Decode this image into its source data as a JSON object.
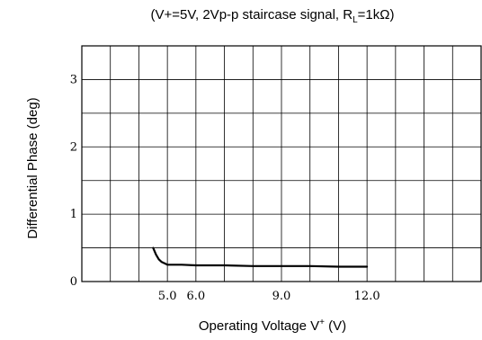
{
  "chart_data": {
    "type": "line",
    "title_parts": {
      "pre": "(V+=5V, 2Vp-p staircase signal, R",
      "sub": "L",
      "post": "=1kΩ)"
    },
    "xlabel_parts": {
      "pre": "Operating Voltage V",
      "sup": "+",
      "post": " (V)"
    },
    "ylabel": "Differential Phase (deg)",
    "xlim": [
      2.0,
      16.0
    ],
    "ylim": [
      0,
      3.5
    ],
    "x_gridlines": [
      3.0,
      4.0,
      5.0,
      6.0,
      7.0,
      8.0,
      9.0,
      10.0,
      11.0,
      12.0,
      13.0,
      14.0,
      15.0
    ],
    "y_gridlines": [
      0.5,
      1.0,
      1.5,
      2.0,
      2.5,
      3.0
    ],
    "x_tick_labels": [
      {
        "value": 5.0,
        "label": "5.0"
      },
      {
        "value": 6.0,
        "label": "6.0"
      },
      {
        "value": 9.0,
        "label": "9.0"
      },
      {
        "value": 12.0,
        "label": "12.0"
      }
    ],
    "y_tick_labels": [
      {
        "value": 0,
        "label": "0"
      },
      {
        "value": 1,
        "label": "1"
      },
      {
        "value": 2,
        "label": "2"
      },
      {
        "value": 3,
        "label": "3"
      }
    ],
    "grid": true,
    "series": [
      {
        "color": "#000000",
        "x": [
          4.5,
          4.6,
          4.7,
          4.8,
          4.9,
          5.0,
          5.5,
          6.0,
          7.0,
          8.0,
          9.0,
          10.0,
          11.0,
          12.0
        ],
        "y": [
          0.5,
          0.4,
          0.33,
          0.29,
          0.27,
          0.25,
          0.25,
          0.24,
          0.24,
          0.23,
          0.23,
          0.23,
          0.22,
          0.22
        ]
      }
    ]
  }
}
